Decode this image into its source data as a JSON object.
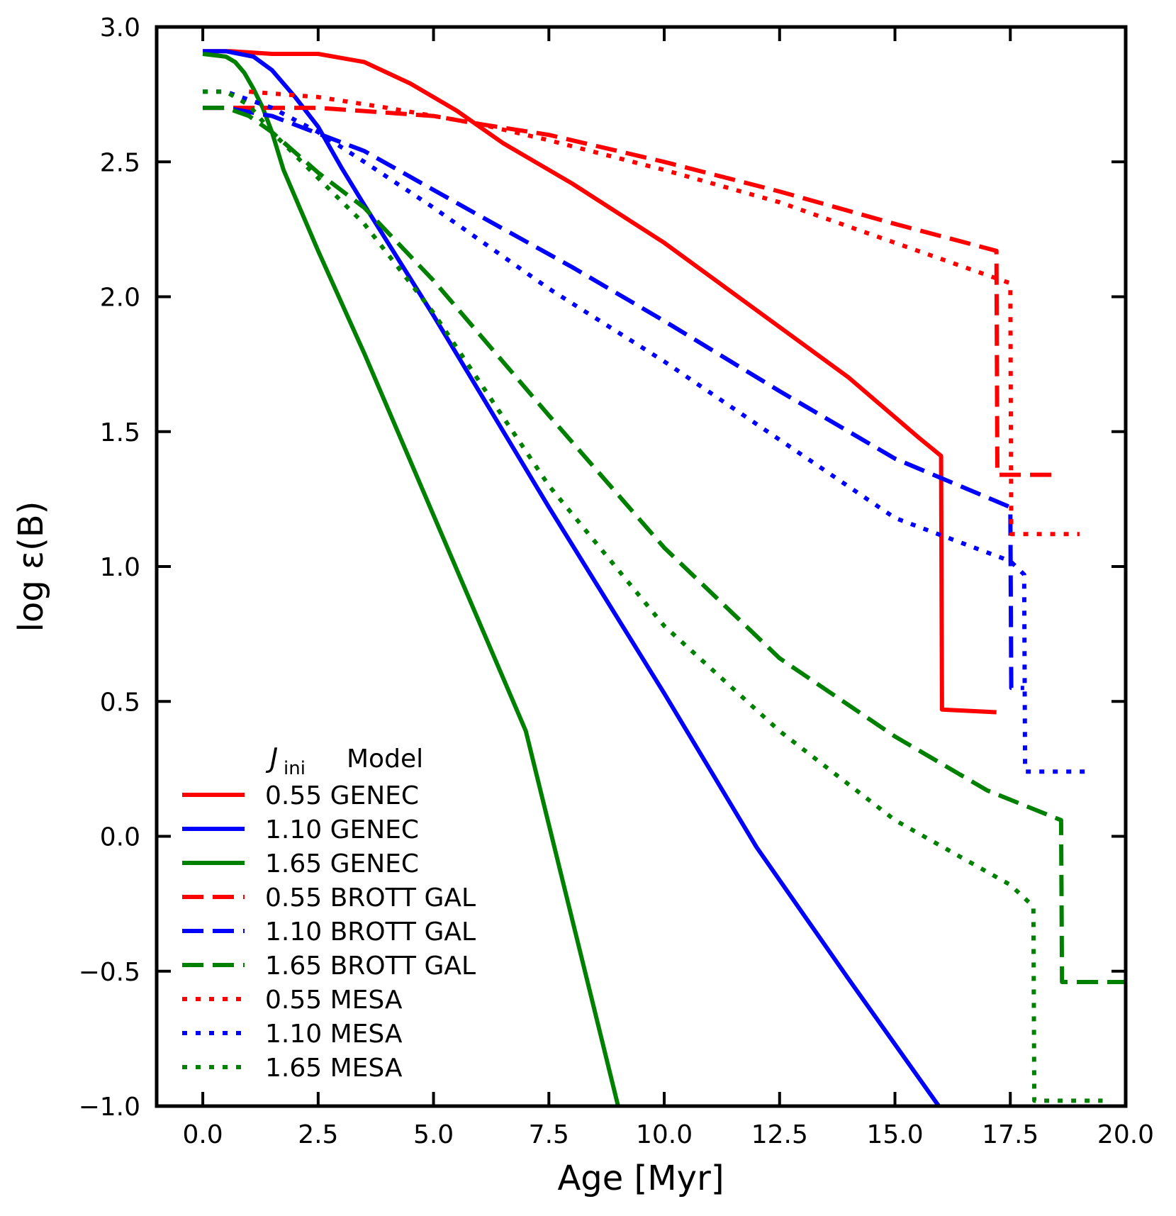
{
  "chart_data": {
    "type": "line",
    "title": "",
    "xlabel": "Age [Myr]",
    "ylabel": "log ε(B)",
    "xlim": [
      -1.0,
      20.0
    ],
    "ylim": [
      -1.0,
      3.0
    ],
    "xticks": [
      0.0,
      2.5,
      5.0,
      7.5,
      10.0,
      12.5,
      15.0,
      17.5,
      20.0
    ],
    "xtick_labels": [
      "0.0",
      "2.5",
      "5.0",
      "7.5",
      "10.0",
      "12.5",
      "15.0",
      "17.5",
      "20.0"
    ],
    "yticks": [
      -1.0,
      -0.5,
      0.0,
      0.5,
      1.0,
      1.5,
      2.0,
      2.5,
      3.0
    ],
    "ytick_labels": [
      "−1.0",
      "−0.5",
      "0.0",
      "0.5",
      "1.0",
      "1.5",
      "2.0",
      "2.5",
      "3.0"
    ],
    "grid": false,
    "legend": {
      "placement": "lower-left",
      "header_symbol": "J",
      "header_subscript": "ini",
      "header_model": "Model"
    },
    "series": [
      {
        "name": "0.55 GENEC",
        "label": "0.55 GENEC",
        "color": "#ff0000",
        "style": "solid",
        "x": [
          0.0,
          0.6,
          1.5,
          2.5,
          3.5,
          4.5,
          5.5,
          6.5,
          8.0,
          10.0,
          12.0,
          14.0,
          15.5,
          16.0,
          16.02,
          17.2
        ],
        "y": [
          2.91,
          2.91,
          2.9,
          2.9,
          2.87,
          2.79,
          2.69,
          2.57,
          2.42,
          2.2,
          1.95,
          1.7,
          1.48,
          1.41,
          0.47,
          0.46
        ]
      },
      {
        "name": "1.10 GENEC",
        "label": "1.10 GENEC",
        "color": "#0000ff",
        "style": "solid",
        "x": [
          0.0,
          0.5,
          1.1,
          1.5,
          2.0,
          2.5,
          3.0,
          3.5,
          5.0,
          7.5,
          10.0,
          12.0,
          14.0,
          15.95
        ],
        "y": [
          2.91,
          2.91,
          2.89,
          2.84,
          2.74,
          2.63,
          2.48,
          2.34,
          1.93,
          1.22,
          0.53,
          -0.04,
          -0.53,
          -1.0
        ]
      },
      {
        "name": "1.65 GENEC",
        "label": "1.65 GENEC",
        "color": "#008000",
        "style": "solid",
        "x": [
          0.0,
          0.5,
          0.7,
          0.9,
          1.1,
          1.3,
          1.5,
          1.75,
          2.5,
          3.5,
          5.0,
          7.0,
          9.0
        ],
        "y": [
          2.9,
          2.89,
          2.87,
          2.83,
          2.77,
          2.7,
          2.61,
          2.47,
          2.17,
          1.79,
          1.19,
          0.39,
          -1.0
        ]
      },
      {
        "name": "0.55 BROTT GAL",
        "label": "0.55 BROTT GAL",
        "color": "#ff0000",
        "style": "dashed",
        "x": [
          0.0,
          2.5,
          5.0,
          6.0,
          7.5,
          10.0,
          12.5,
          15.0,
          17.2,
          17.22,
          18.4
        ],
        "y": [
          2.7,
          2.7,
          2.67,
          2.64,
          2.6,
          2.5,
          2.39,
          2.27,
          2.17,
          1.34,
          1.34
        ]
      },
      {
        "name": "1.10 BROTT GAL",
        "label": "1.10 BROTT GAL",
        "color": "#0000ff",
        "style": "dashed",
        "x": [
          0.0,
          0.5,
          1.5,
          3.5,
          6.0,
          8.0,
          10.0,
          12.5,
          15.0,
          17.5,
          17.52,
          17.8
        ],
        "y": [
          2.7,
          2.7,
          2.67,
          2.54,
          2.3,
          2.11,
          1.91,
          1.65,
          1.4,
          1.22,
          0.55,
          0.55
        ]
      },
      {
        "name": "1.65 BROTT GAL",
        "label": "1.65 BROTT GAL",
        "color": "#008000",
        "style": "dashed",
        "x": [
          0.0,
          0.5,
          1.0,
          1.5,
          2.5,
          3.5,
          5.0,
          7.5,
          10.0,
          12.5,
          15.0,
          17.0,
          18.6,
          18.62,
          20.0
        ],
        "y": [
          2.7,
          2.7,
          2.67,
          2.61,
          2.46,
          2.33,
          2.06,
          1.56,
          1.07,
          0.66,
          0.37,
          0.17,
          0.06,
          -0.54,
          -0.54
        ]
      },
      {
        "name": "0.55 MESA",
        "label": "0.55 MESA",
        "color": "#ff0000",
        "style": "dotted",
        "x": [
          1.0,
          2.5,
          4.0,
          6.0,
          7.5,
          10.0,
          12.5,
          15.0,
          17.5,
          17.52,
          19.0
        ],
        "y": [
          2.76,
          2.74,
          2.7,
          2.64,
          2.58,
          2.47,
          2.35,
          2.2,
          2.05,
          1.12,
          1.12
        ]
      },
      {
        "name": "1.10 MESA",
        "label": "1.10 MESA",
        "color": "#0000ff",
        "style": "dotted",
        "x": [
          0.0,
          0.5,
          1.5,
          2.5,
          3.5,
          5.0,
          7.5,
          10.0,
          12.5,
          15.0,
          17.5,
          17.8,
          17.82,
          19.2
        ],
        "y": [
          2.76,
          2.76,
          2.7,
          2.61,
          2.5,
          2.33,
          2.03,
          1.76,
          1.47,
          1.18,
          1.02,
          0.97,
          0.24,
          0.24
        ]
      },
      {
        "name": "1.65 MESA",
        "label": "1.65 MESA",
        "color": "#008000",
        "style": "dotted",
        "x": [
          0.0,
          0.5,
          1.0,
          1.5,
          2.5,
          3.5,
          5.0,
          7.5,
          10.0,
          12.5,
          15.0,
          17.5,
          18.0,
          18.02,
          19.5
        ],
        "y": [
          2.76,
          2.76,
          2.71,
          2.61,
          2.44,
          2.27,
          1.94,
          1.3,
          0.78,
          0.39,
          0.06,
          -0.18,
          -0.26,
          -0.98,
          -0.98
        ]
      }
    ]
  }
}
